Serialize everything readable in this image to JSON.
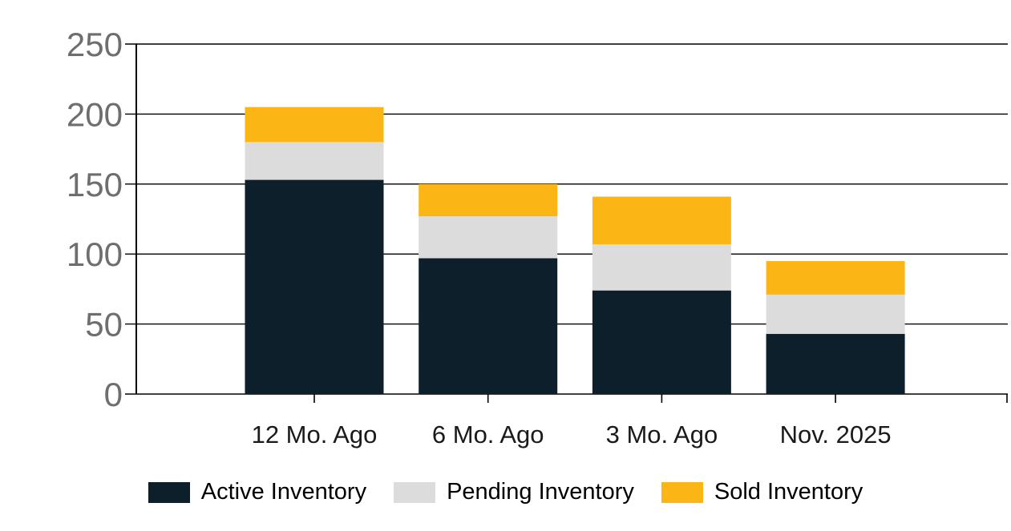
{
  "chart_data": {
    "type": "bar",
    "stacked": true,
    "title": "",
    "xlabel": "",
    "ylabel": "",
    "categories": [
      "12 Mo. Ago",
      "6 Mo. Ago",
      "3 Mo. Ago",
      "Nov. 2025"
    ],
    "series": [
      {
        "name": "Active Inventory",
        "color": "#0D1F2B",
        "values": [
          153,
          97,
          74,
          43
        ]
      },
      {
        "name": "Pending Inventory",
        "color": "#DCDCDC",
        "values": [
          27,
          30,
          33,
          28
        ]
      },
      {
        "name": "Sold Inventory",
        "color": "#FBB616",
        "values": [
          25,
          23,
          34,
          24
        ]
      }
    ],
    "totals": [
      205,
      150,
      141,
      95
    ],
    "ylim": [
      0,
      250
    ],
    "yticks": [
      0,
      50,
      100,
      150,
      200,
      250
    ],
    "grid": true,
    "legend_position": "bottom",
    "colors": {
      "background": "#FFFFFF",
      "gridline": "#000000",
      "axis": "#000000",
      "ytick_label": "#6E6E6E",
      "xtick_label": "#1A1A1A",
      "legend_text": "#000000"
    }
  }
}
